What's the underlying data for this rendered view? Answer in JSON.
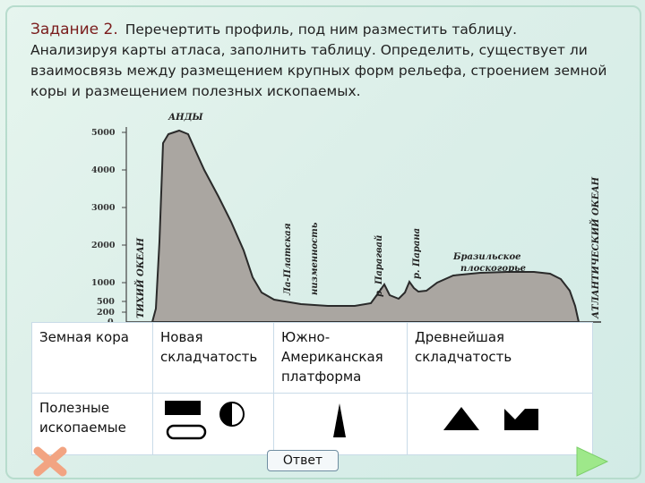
{
  "task": {
    "title": "Задание 2.",
    "line1": "Перечертить профиль, под ним разместить таблицу.",
    "line2": "Анализируя карты атласа, заполнить таблицу. Определить,  существует ли взаимосвязь между размещением крупных форм рельефа, строением земной коры и размещением полезных ископаемых."
  },
  "profile": {
    "y_ticks": [
      "5000",
      "4000",
      "3000",
      "2000",
      "1000",
      "500",
      "200",
      "0"
    ],
    "labels": {
      "andes": "АНДЫ",
      "pacific": "ТИХИЙ ОКЕАН",
      "la_plata": "Ла-Платская",
      "lowland": "низменность",
      "paraguay": "р. Парагвай",
      "parana": "р. Парана",
      "brazil1": "Бразильское",
      "brazil2": "плоскогорье",
      "atlantic": "АТЛАНТИЧЕСКИЙ ОКЕАН"
    }
  },
  "table": {
    "row1": {
      "header": "Земная кора",
      "col1": "Новая складчатость",
      "col2": "Южно-Американская платформа",
      "col3": "Древнейшая складчатость"
    },
    "row2": {
      "header": "Полезные ископаемые"
    }
  },
  "icons": [
    "black-rectangle-icon",
    "half-filled-circle-icon",
    "oval-icon",
    "tall-triangle-icon",
    "triangle-icon",
    "crown-icon"
  ],
  "buttons": {
    "answer": "Ответ"
  }
}
